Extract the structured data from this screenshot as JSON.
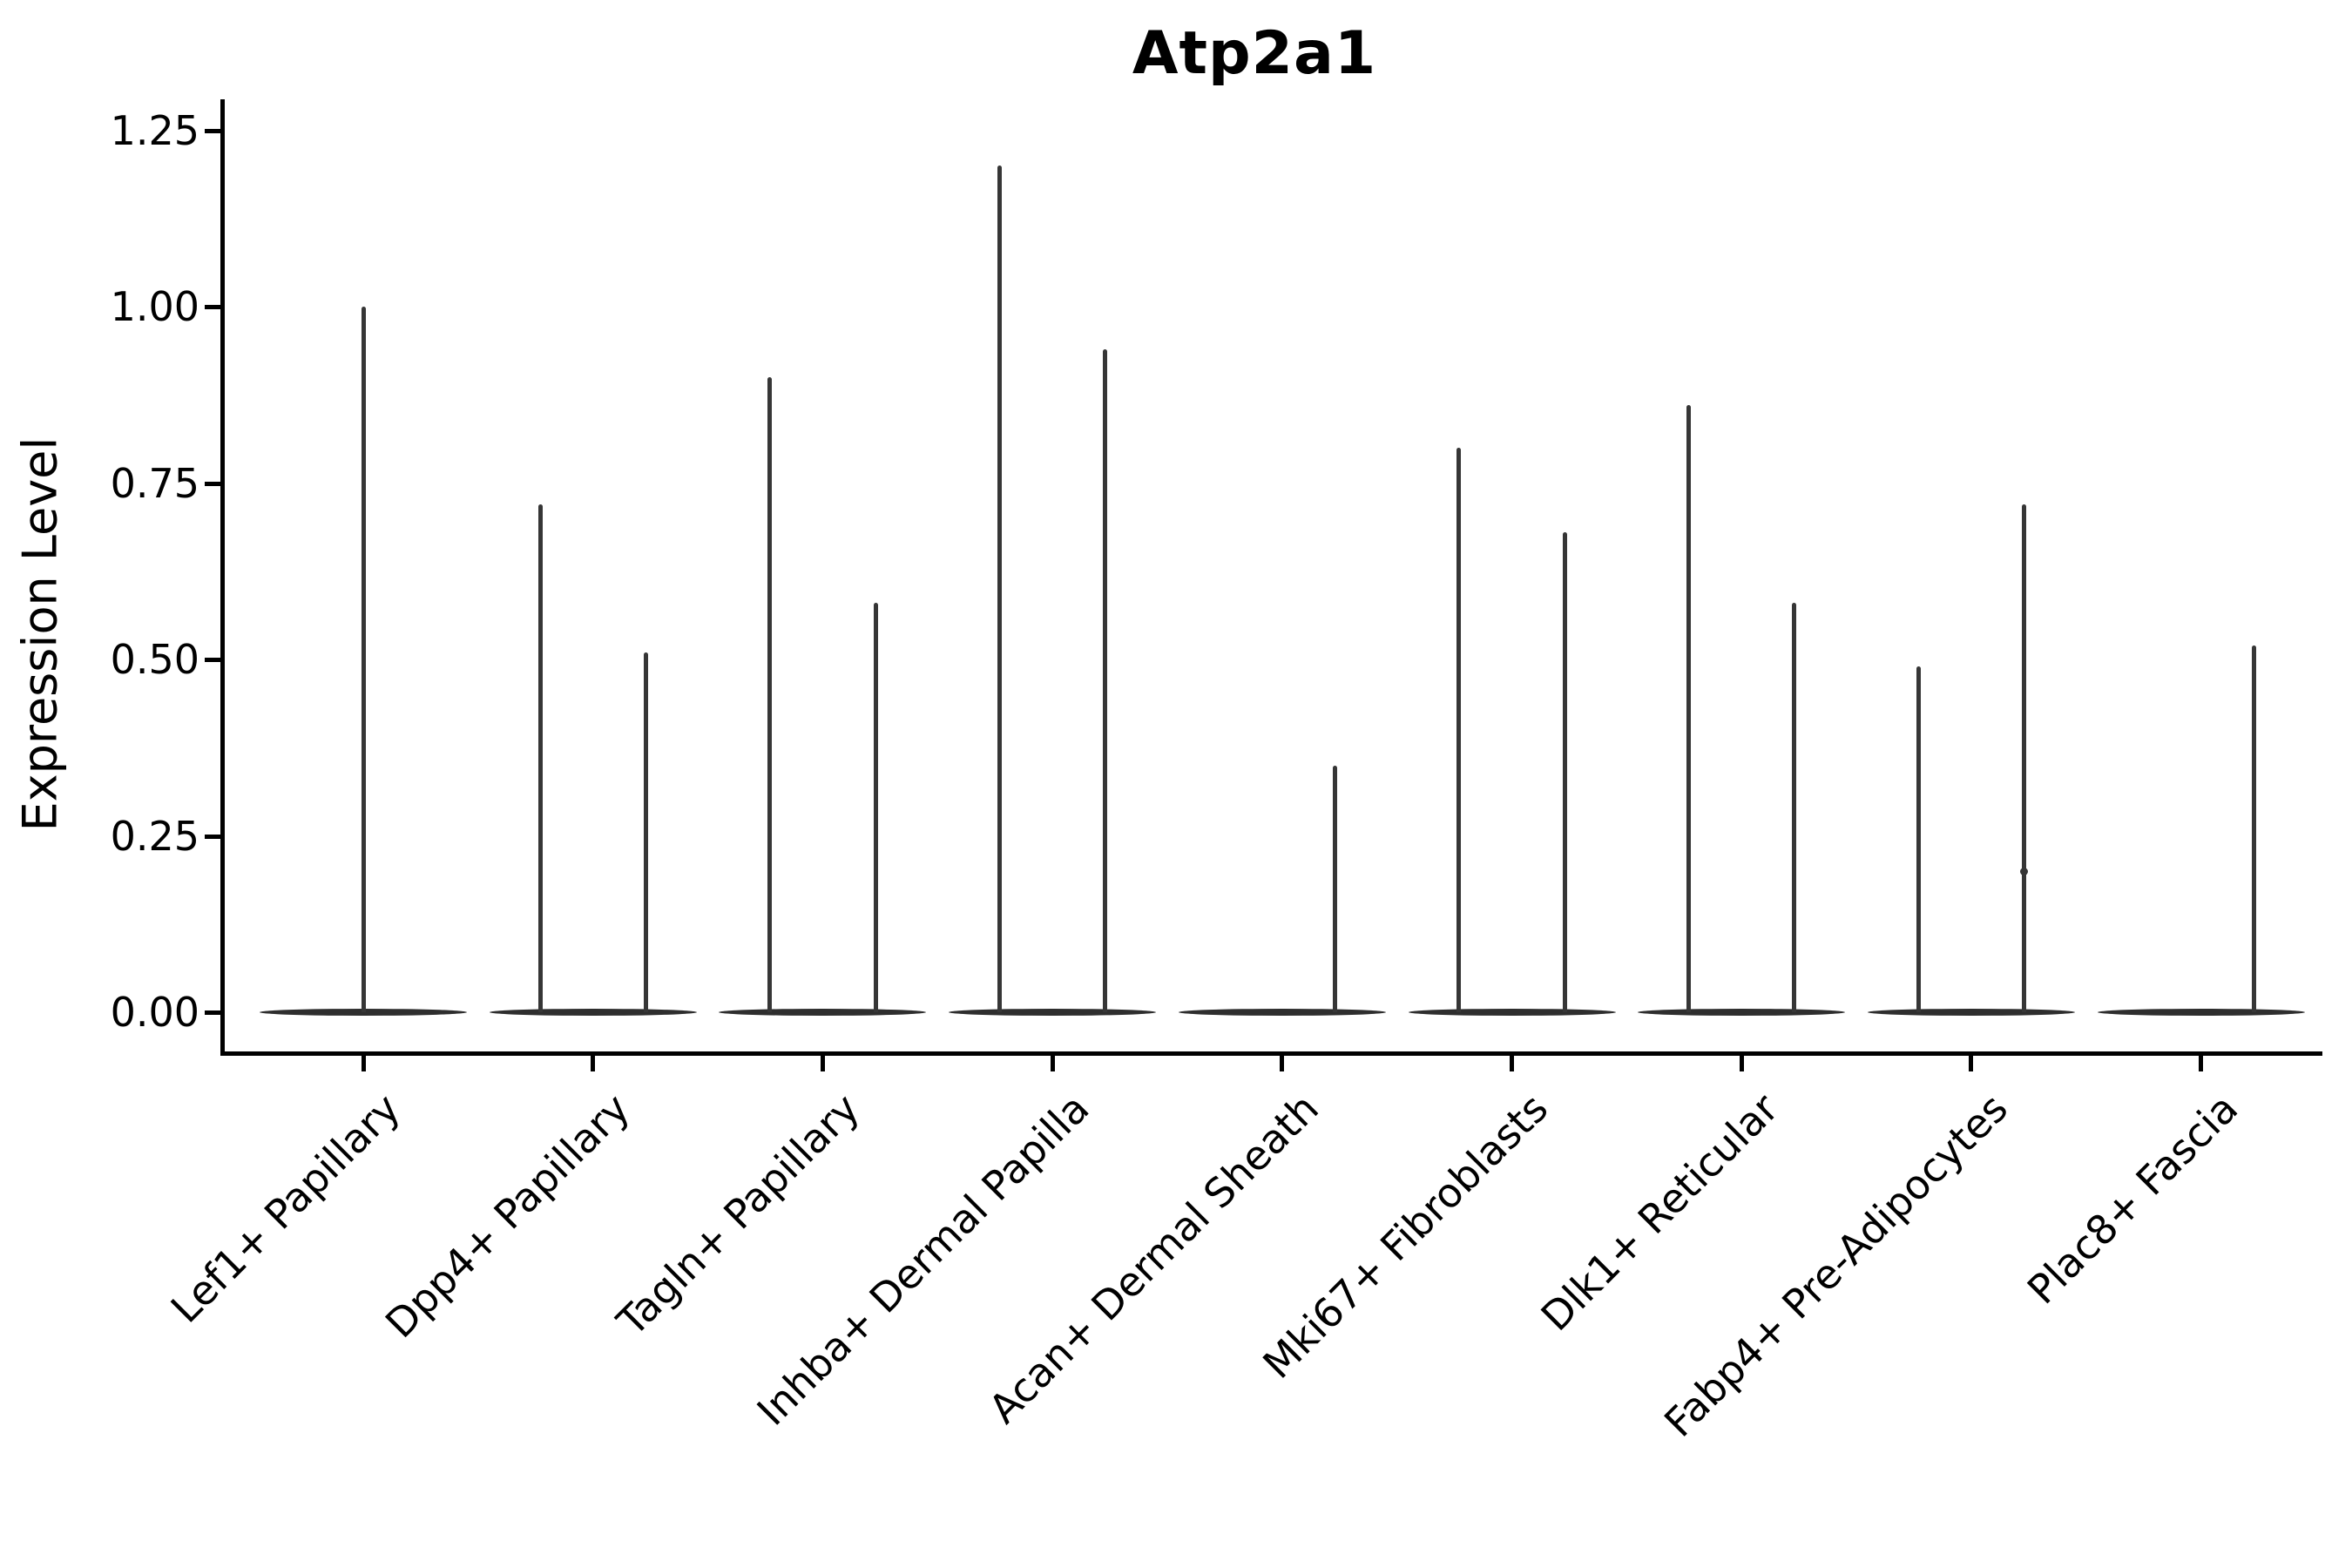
{
  "title": "Atp2a1",
  "y_axis": {
    "label": "Expression Level",
    "tick_labels": [
      "0.00",
      "0.25",
      "0.50",
      "0.75",
      "1.00",
      "1.25"
    ]
  },
  "x_axis": {
    "tick_labels": [
      "Lef1+ Papillary",
      "Dpp4+ Papillary",
      "Tagln+ Papillary",
      "Inhba+ Dermal Papilla",
      "Acan+ Dermal Sheath",
      "Mki67+ Fibroblasts",
      "Dlk1+ Reticular",
      "Fabp4+ Pre-Adipocytes",
      "Plac8+ Fascia"
    ]
  },
  "chart_data": {
    "type": "violin",
    "title": "Atp2a1",
    "xlabel": "",
    "ylabel": "Expression Level",
    "ylim": [
      -0.06,
      1.3
    ],
    "yticks": [
      0.0,
      0.25,
      0.5,
      0.75,
      1.0,
      1.25
    ],
    "grid": false,
    "legend": null,
    "description": "Zero-inflated violin plot; each cell type shows a wide flat density body at expression 0 plus narrow vertical density spikes reaching the maximum expression values listed below.",
    "categories": [
      "Lef1+ Papillary",
      "Dpp4+ Papillary",
      "Tagln+ Papillary",
      "Inhba+ Dermal Papilla",
      "Acan+ Dermal Sheath",
      "Mki67+ Fibroblasts",
      "Dlk1+ Reticular",
      "Fabp4+ Pre-Adipocytes",
      "Plac8+ Fascia"
    ],
    "violins": [
      {
        "category": "Lef1+ Papillary",
        "baseline_value": 0.0,
        "spikes": [
          {
            "offset_frac": 0.0,
            "peak": 1.0
          }
        ]
      },
      {
        "category": "Dpp4+ Papillary",
        "baseline_value": 0.0,
        "spikes": [
          {
            "offset_frac": -0.23,
            "peak": 0.72
          },
          {
            "offset_frac": 0.23,
            "peak": 0.51
          }
        ]
      },
      {
        "category": "Tagln+ Papillary",
        "baseline_value": 0.0,
        "spikes": [
          {
            "offset_frac": -0.23,
            "peak": 0.9
          },
          {
            "offset_frac": 0.23,
            "peak": 0.58
          }
        ]
      },
      {
        "category": "Inhba+ Dermal Papilla",
        "baseline_value": 0.0,
        "spikes": [
          {
            "offset_frac": -0.23,
            "peak": 1.2
          },
          {
            "offset_frac": 0.23,
            "peak": 0.94
          }
        ]
      },
      {
        "category": "Acan+ Dermal Sheath",
        "baseline_value": 0.0,
        "spikes": [
          {
            "offset_frac": 0.23,
            "peak": 0.35
          }
        ]
      },
      {
        "category": "Mki67+ Fibroblasts",
        "baseline_value": 0.0,
        "spikes": [
          {
            "offset_frac": -0.23,
            "peak": 0.8
          },
          {
            "offset_frac": 0.23,
            "peak": 0.68
          }
        ]
      },
      {
        "category": "Dlk1+ Reticular",
        "baseline_value": 0.0,
        "spikes": [
          {
            "offset_frac": -0.23,
            "peak": 0.86
          },
          {
            "offset_frac": 0.23,
            "peak": 0.58
          }
        ]
      },
      {
        "category": "Fabp4+ Pre-Adipocytes",
        "baseline_value": 0.0,
        "spikes": [
          {
            "offset_frac": -0.23,
            "peak": 0.49
          },
          {
            "offset_frac": 0.23,
            "peak": 0.72,
            "node_at": 0.2
          }
        ]
      },
      {
        "category": "Plac8+ Fascia",
        "baseline_value": 0.0,
        "spikes": [
          {
            "offset_frac": 0.23,
            "peak": 0.52
          }
        ]
      }
    ],
    "colors": {
      "line": "#363636",
      "body": "#2e2e2e",
      "axis": "#000000",
      "text": "#000000",
      "background": "#ffffff"
    }
  }
}
